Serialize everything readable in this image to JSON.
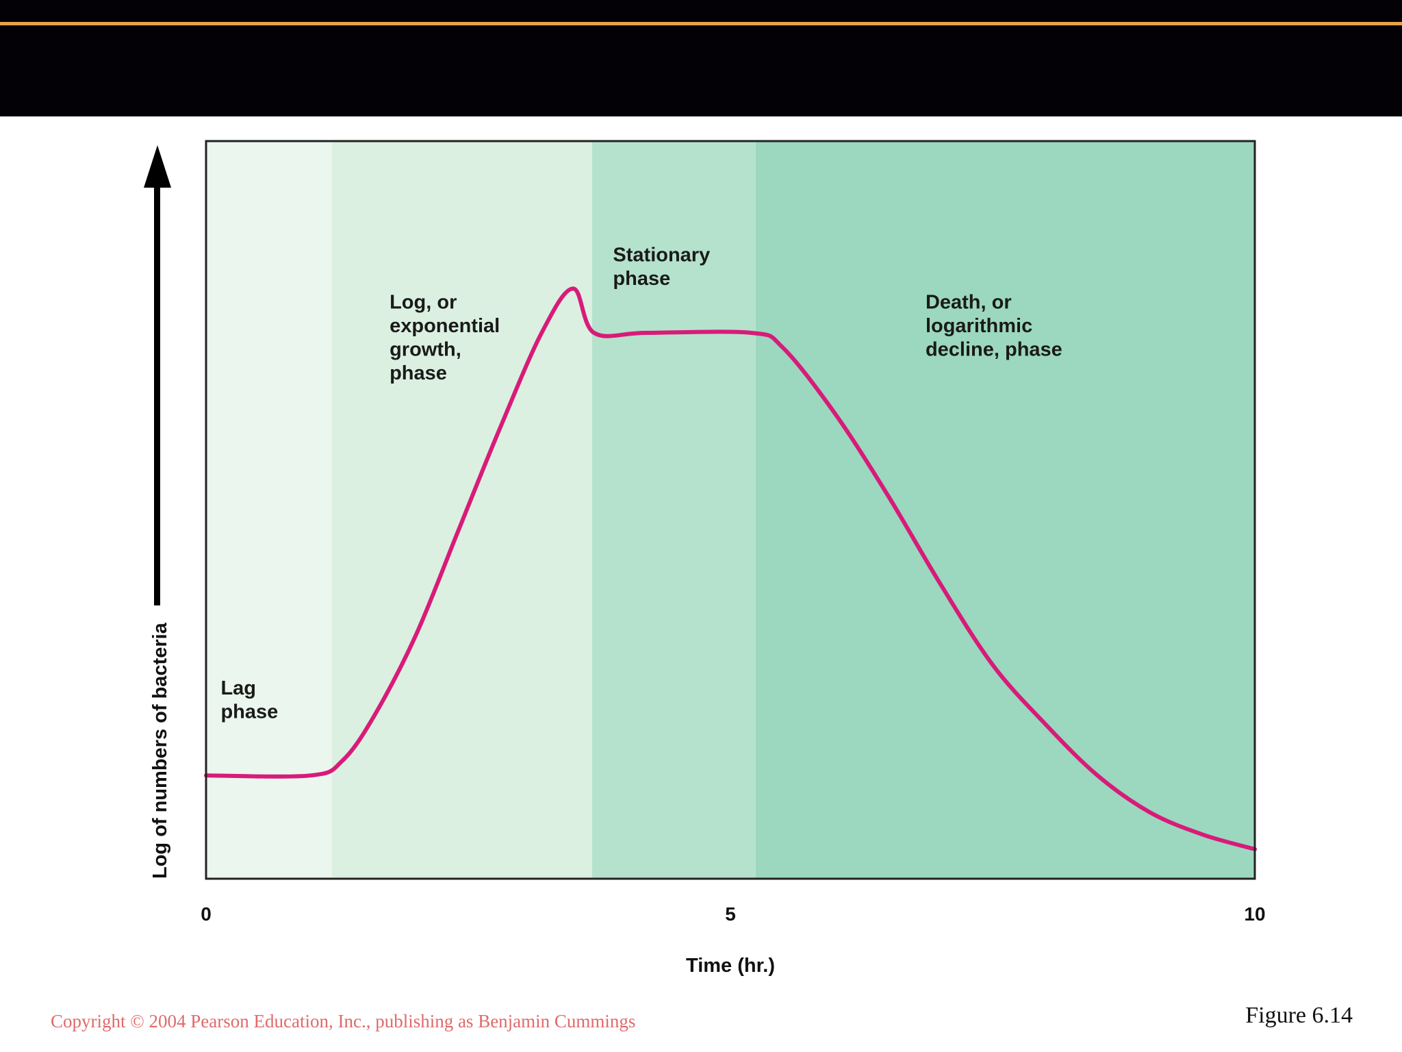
{
  "footer": {
    "copyright": "Copyright © 2004 Pearson Education, Inc., publishing as Benjamin Cummings",
    "figure": "Figure 6.14"
  },
  "colors": {
    "header_band": "#030006",
    "header_stripe": "#e8a24a",
    "curve": "#d81b79",
    "lag_band": "#eaf6ee",
    "log_band": "#dbf0e0",
    "stationary_band": "#b5e2cd",
    "death_band": "#9bd8bf"
  },
  "chart_data": {
    "type": "line",
    "title": "",
    "xlabel": "Time (hr.)",
    "ylabel": "Log of numbers of bacteria",
    "xlim": [
      0,
      10
    ],
    "ylim": [
      0,
      1
    ],
    "x_ticks": [
      "0",
      "5",
      "10"
    ],
    "y_scale": "log",
    "y_ticks_shown": false,
    "grid": false,
    "phases": [
      {
        "name": "Lag phase",
        "lines": [
          "Lag",
          "phase"
        ],
        "start": 0,
        "end": 1.2
      },
      {
        "name": "Log, or exponential growth, phase",
        "lines": [
          "Log, or",
          "exponential",
          "growth,",
          "phase"
        ],
        "start": 1.2,
        "end": 3.68
      },
      {
        "name": "Stationary phase",
        "lines": [
          "Stationary",
          "phase"
        ],
        "start": 3.68,
        "end": 5.24
      },
      {
        "name": "Death, or logarithmic decline, phase",
        "lines": [
          "Death, or",
          "logarithmic",
          "decline, phase"
        ],
        "start": 5.24,
        "end": 10
      }
    ],
    "series": [
      {
        "name": "",
        "x": [
          0,
          1.0,
          1.3,
          1.6,
          2.0,
          2.4,
          2.8,
          3.2,
          3.5,
          3.7,
          4.2,
          5.2,
          5.5,
          6.0,
          6.5,
          7.0,
          7.5,
          8.0,
          8.5,
          9.0,
          9.5,
          10.0
        ],
        "y": [
          0.14,
          0.14,
          0.16,
          0.22,
          0.33,
          0.47,
          0.61,
          0.74,
          0.8,
          0.74,
          0.74,
          0.74,
          0.72,
          0.63,
          0.52,
          0.4,
          0.29,
          0.21,
          0.14,
          0.09,
          0.06,
          0.04
        ]
      }
    ]
  }
}
